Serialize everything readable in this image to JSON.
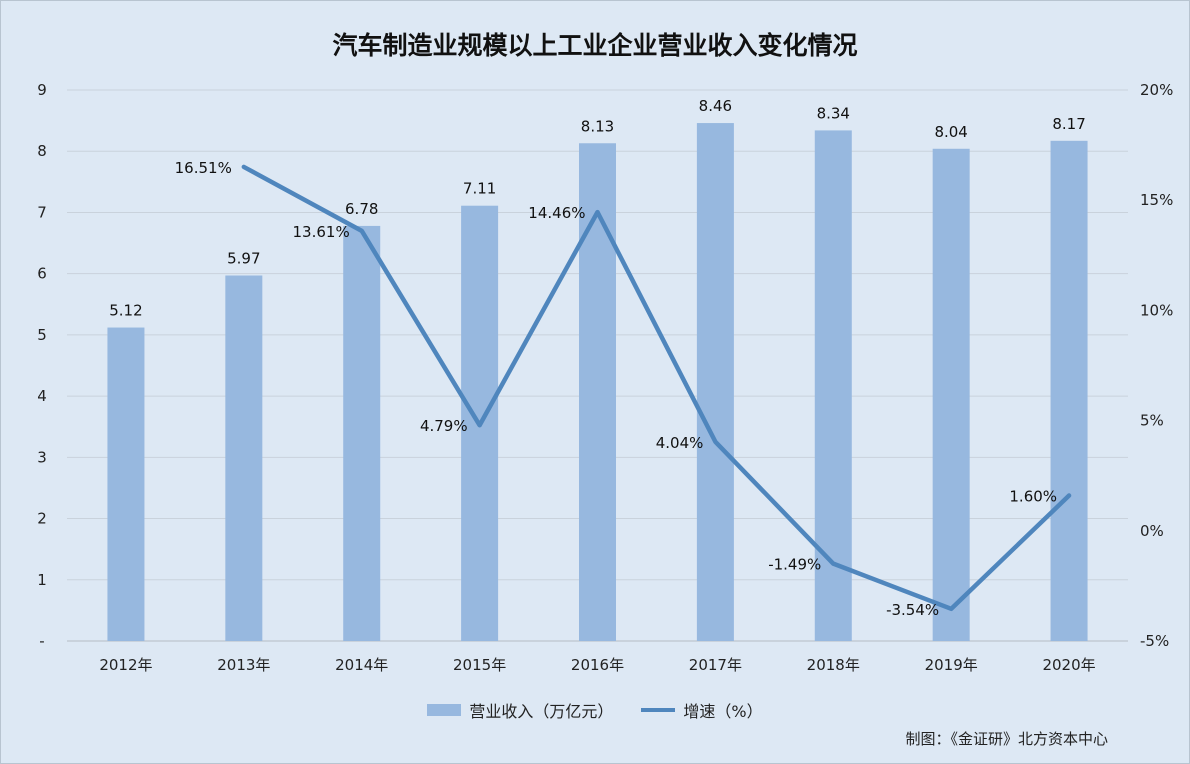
{
  "chart_data": {
    "type": "bar",
    "title": "汽车制造业规模以上工业企业营业收入变化情况",
    "categories": [
      "2012年",
      "2013年",
      "2014年",
      "2015年",
      "2016年",
      "2017年",
      "2018年",
      "2019年",
      "2020年"
    ],
    "series": [
      {
        "name": "营业收入（万亿元）",
        "type": "bar",
        "axis": "left",
        "values": [
          5.12,
          5.97,
          6.78,
          7.11,
          8.13,
          8.46,
          8.34,
          8.04,
          8.17
        ],
        "labels": [
          "5.12",
          "5.97",
          "6.78",
          "7.11",
          "8.13",
          "8.46",
          "8.34",
          "8.04",
          "8.17"
        ],
        "color": "#97b8df"
      },
      {
        "name": "增速（%）",
        "type": "line",
        "axis": "right",
        "values": [
          null,
          16.51,
          13.61,
          4.79,
          14.46,
          4.04,
          -1.49,
          -3.54,
          1.6
        ],
        "labels": [
          null,
          "16.51%",
          "13.61%",
          "4.79%",
          "14.46%",
          "4.04%",
          "-1.49%",
          "-3.54%",
          "1.60%"
        ],
        "color": "#4f86bd"
      }
    ],
    "left_axis": {
      "min": 0,
      "max": 9,
      "ticks": [
        "-",
        "1",
        "2",
        "3",
        "4",
        "5",
        "6",
        "7",
        "8",
        "9"
      ]
    },
    "right_axis": {
      "min": -5,
      "max": 20,
      "ticks": [
        "-5%",
        "0%",
        "5%",
        "10%",
        "15%",
        "20%"
      ]
    },
    "grid": true,
    "legend": "bottom"
  },
  "source": "制图：《金证研》北方资本中心"
}
